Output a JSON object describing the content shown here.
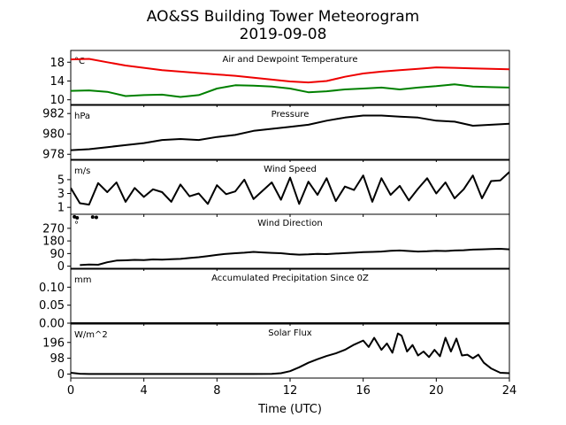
{
  "title": "AO&SS Building Tower Meteorogram",
  "subtitle": "2019-09-08",
  "xlabel": "Time (UTC)",
  "chart_data": {
    "type": "line",
    "x_range": [
      0,
      24
    ],
    "x_ticks": [
      0,
      4,
      8,
      12,
      16,
      20,
      24
    ],
    "x_tick_labels": [
      "0",
      "4",
      "8",
      "12",
      "16",
      "20",
      "24"
    ],
    "panels": [
      {
        "key": "temp",
        "title": "Air and Dewpoint Temperature",
        "unit": "°C",
        "ylim": [
          9,
          20.5
        ],
        "y_ticks": [
          10,
          14,
          18
        ],
        "y_tick_labels": [
          "10",
          "14",
          "18"
        ],
        "series": [
          {
            "color": "#ee0000",
            "x": [
              0,
              1,
              2,
              3,
              4,
              5,
              6,
              7,
              8,
              9,
              10,
              11,
              12,
              13,
              14,
              15,
              16,
              17,
              18,
              19,
              20,
              21,
              22,
              23,
              24
            ],
            "y": [
              18.6,
              18.7,
              18.0,
              17.3,
              16.8,
              16.3,
              16.0,
              15.7,
              15.4,
              15.1,
              14.7,
              14.3,
              13.9,
              13.7,
              14.0,
              14.9,
              15.6,
              16.0,
              16.3,
              16.6,
              16.9,
              16.8,
              16.7,
              16.6,
              16.5
            ]
          },
          {
            "color": "#008000",
            "x": [
              0,
              1,
              2,
              3,
              4,
              5,
              6,
              7,
              8,
              9,
              10,
              11,
              12,
              13,
              14,
              15,
              16,
              17,
              18,
              19,
              20,
              21,
              22,
              23,
              24
            ],
            "y": [
              11.9,
              12.0,
              11.7,
              10.8,
              11.0,
              11.1,
              10.6,
              11.0,
              12.4,
              13.1,
              13.0,
              12.8,
              12.4,
              11.6,
              11.8,
              12.2,
              12.4,
              12.6,
              12.2,
              12.6,
              12.9,
              13.3,
              12.8,
              12.7,
              12.6
            ]
          }
        ]
      },
      {
        "key": "pressure",
        "title": "Pressure",
        "unit": "hPa",
        "ylim": [
          977.5,
          982.8
        ],
        "y_ticks": [
          978,
          980,
          982
        ],
        "y_tick_labels": [
          "978",
          "980",
          "982"
        ],
        "series": [
          {
            "color": "#000000",
            "x": [
              0,
              1,
              2,
              3,
              4,
              5,
              6,
              7,
              8,
              9,
              10,
              11,
              12,
              13,
              14,
              15,
              16,
              17,
              18,
              19,
              20,
              21,
              22,
              23,
              24
            ],
            "y": [
              978.4,
              978.5,
              978.7,
              978.9,
              979.1,
              979.4,
              979.5,
              979.4,
              979.7,
              979.9,
              980.3,
              980.5,
              980.7,
              980.9,
              981.3,
              981.6,
              981.8,
              981.8,
              981.7,
              981.6,
              981.3,
              981.2,
              980.8,
              980.9,
              981.0
            ]
          }
        ]
      },
      {
        "key": "wind_speed",
        "title": "Wind Speed",
        "unit": "m/s",
        "ylim": [
          0,
          7.8
        ],
        "y_ticks": [
          1,
          3,
          5
        ],
        "y_tick_labels": [
          "1",
          "3",
          "5"
        ],
        "series": [
          {
            "color": "#000000",
            "x": [
              0,
              0.5,
              1,
              1.5,
              2,
              2.5,
              3,
              3.5,
              4,
              4.5,
              5,
              5.5,
              6,
              6.5,
              7,
              7.5,
              8,
              8.5,
              9,
              9.5,
              10,
              10.5,
              11,
              11.5,
              12,
              12.5,
              13,
              13.5,
              14,
              14.5,
              15,
              15.5,
              16,
              16.5,
              17,
              17.5,
              18,
              18.5,
              19,
              19.5,
              20,
              20.5,
              21,
              21.5,
              22,
              22.5,
              23,
              23.5,
              24
            ],
            "y": [
              3.8,
              1.6,
              1.4,
              4.5,
              3.2,
              4.6,
              1.8,
              3.8,
              2.5,
              3.6,
              3.2,
              1.8,
              4.3,
              2.6,
              3.0,
              1.5,
              4.2,
              2.9,
              3.3,
              5.0,
              2.2,
              3.4,
              4.6,
              2.1,
              5.3,
              1.5,
              4.7,
              2.8,
              5.2,
              1.9,
              4.0,
              3.5,
              5.6,
              1.8,
              5.2,
              2.8,
              4.1,
              2.0,
              3.7,
              5.2,
              3.0,
              4.6,
              2.3,
              3.6,
              5.6,
              2.3,
              4.8,
              4.9,
              6.1
            ]
          }
        ]
      },
      {
        "key": "wind_dir",
        "title": "Wind Direction",
        "unit": "°",
        "ylim": [
          -15,
          370
        ],
        "y_ticks": [
          0,
          90,
          180,
          270
        ],
        "y_tick_labels": [
          "0",
          "90",
          "180",
          "270"
        ],
        "series": [
          {
            "color": "#000000",
            "x": [
              0.5,
              1.0,
              1.5,
              2.0,
              2.5,
              3,
              3.5,
              4,
              4.5,
              5,
              5.5,
              6,
              6.5,
              7,
              7.5,
              8,
              8.5,
              9,
              9.5,
              10,
              10.5,
              11,
              11.5,
              12,
              12.5,
              13,
              13.5,
              14,
              14.5,
              15,
              15.5,
              16,
              16.5,
              17,
              17.5,
              18,
              18.5,
              19,
              19.5,
              20,
              20.5,
              21,
              21.5,
              22,
              22.5,
              23,
              23.5,
              24
            ],
            "y": [
              8,
              12,
              10,
              28,
              40,
              42,
              45,
              44,
              48,
              46,
              50,
              52,
              58,
              64,
              72,
              80,
              88,
              92,
              96,
              102,
              98,
              95,
              92,
              86,
              82,
              84,
              88,
              86,
              90,
              93,
              96,
              100,
              102,
              104,
              110,
              112,
              108,
              104,
              106,
              110,
              108,
              112,
              114,
              118,
              120,
              122,
              124,
              120
            ]
          },
          {
            "color": "#000000",
            "x": [
              0.2,
              0.35,
              1.2,
              1.4
            ],
            "y": [
              352,
              345,
              350,
              348
            ]
          }
        ]
      },
      {
        "key": "precip",
        "title": "Accumulated Precipitation Since 0Z",
        "unit": "mm",
        "ylim": [
          0,
          0.15
        ],
        "y_ticks": [
          0.0,
          0.05,
          0.1
        ],
        "y_tick_labels": [
          "0.00",
          "0.05",
          "0.10"
        ],
        "series": [
          {
            "color": "#000000",
            "x": [
              0,
              24
            ],
            "y": [
              0,
              0
            ]
          }
        ]
      },
      {
        "key": "solar",
        "title": "Solar Flux",
        "unit": "W/m^2",
        "ylim": [
          -25,
          310
        ],
        "y_ticks": [
          0,
          98,
          196
        ],
        "y_tick_labels": [
          "0",
          "98",
          "196"
        ],
        "series": [
          {
            "color": "#000000",
            "x": [
              0,
              0.5,
              1,
              2,
              4,
              6,
              8,
              10,
              11,
              11.5,
              12,
              12.5,
              13,
              13.5,
              14,
              14.5,
              15,
              15.5,
              16,
              16.3,
              16.6,
              17,
              17.3,
              17.6,
              17.9,
              18.1,
              18.4,
              18.7,
              19,
              19.3,
              19.6,
              19.9,
              20.2,
              20.5,
              20.8,
              21.1,
              21.4,
              21.7,
              22,
              22.3,
              22.6,
              23,
              23.5,
              24
            ],
            "y": [
              8,
              2,
              0,
              0,
              0,
              0,
              0,
              0,
              1,
              5,
              18,
              42,
              70,
              92,
              112,
              128,
              150,
              182,
              208,
              168,
              225,
              150,
              190,
              132,
              252,
              238,
              140,
              180,
              115,
              140,
              105,
              150,
              110,
              225,
              140,
              220,
              115,
              120,
              98,
              120,
              70,
              35,
              8,
              5
            ]
          }
        ]
      }
    ]
  }
}
